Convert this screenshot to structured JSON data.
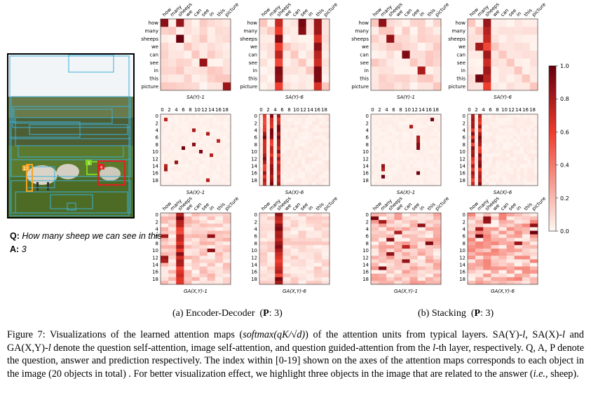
{
  "question_label": "Q",
  "question_text": "How many sheep we can see in this picture ?",
  "answer_label": "A",
  "answer_text": "3",
  "photo_box_labels": [
    "17",
    "3",
    "4"
  ],
  "subcaption_a": {
    "text": "(a) Encoder-Decoder",
    "pred_label": "P",
    "pred_value": "3"
  },
  "subcaption_b": {
    "text": "(b) Stacking",
    "pred_label": "P",
    "pred_value": "3"
  },
  "words": [
    "how",
    "many",
    "sheeps",
    "we",
    "can",
    "see",
    "in",
    "this",
    "picture"
  ],
  "object_ticks": [
    "0",
    "2",
    "4",
    "6",
    "8",
    "10",
    "12",
    "14",
    "16",
    "18"
  ],
  "colorbar_ticks": [
    "1.0",
    "0.8",
    "0.6",
    "0.4",
    "0.2",
    "0.0"
  ],
  "colors": {
    "low": "#fff5f0",
    "high": "#67000d"
  },
  "panels": [
    {
      "title": "SA(Y)-1",
      "kind": "word-word",
      "hot_rows": [],
      "hot_cols": [],
      "hot_cells": [
        [
          0,
          0
        ],
        [
          2,
          2
        ],
        [
          5,
          5
        ],
        [
          8,
          8
        ],
        [
          0,
          2
        ]
      ],
      "base": 0.1
    },
    {
      "title": "SA(Y)-6",
      "kind": "word-word",
      "hot_rows": [],
      "hot_cols": [
        2,
        7
      ],
      "hot_cells": [
        [
          0,
          5
        ],
        [
          1,
          5
        ],
        [
          6,
          7
        ]
      ],
      "base": 0.05
    },
    {
      "title": "SA(Y)-1",
      "kind": "word-word",
      "hot_rows": [],
      "hot_cols": [],
      "hot_cells": [
        [
          0,
          1
        ],
        [
          2,
          2
        ],
        [
          4,
          4
        ],
        [
          6,
          6
        ]
      ],
      "base": 0.1
    },
    {
      "title": "SA(Y)-6",
      "kind": "word-word",
      "hot_rows": [],
      "hot_cols": [
        2
      ],
      "hot_cells": [
        [
          3,
          1
        ],
        [
          4,
          2
        ],
        [
          7,
          1
        ]
      ],
      "base": 0.05
    },
    {
      "title": "SA(X)-1",
      "kind": "obj-obj",
      "hot_rows": [],
      "hot_cols": [],
      "hot_cells": [
        [
          1,
          1
        ],
        [
          4,
          9
        ],
        [
          5,
          13
        ],
        [
          7,
          16
        ],
        [
          9,
          6
        ],
        [
          10,
          11
        ],
        [
          14,
          1
        ],
        [
          15,
          1
        ],
        [
          13,
          4
        ],
        [
          11,
          14
        ],
        [
          8,
          9
        ],
        [
          18,
          13
        ]
      ],
      "base": 0.02
    },
    {
      "title": "SA(X)-6",
      "kind": "obj-obj",
      "hot_rows": [],
      "hot_cols": [
        1,
        3,
        5
      ],
      "hot_cells": [],
      "base": 0.03
    },
    {
      "title": "SA(X)-1",
      "kind": "obj-obj",
      "hot_rows": [],
      "hot_cols": [],
      "hot_cells": [
        [
          1,
          17
        ],
        [
          3,
          11
        ],
        [
          6,
          13
        ],
        [
          7,
          13
        ],
        [
          8,
          13
        ],
        [
          9,
          13
        ],
        [
          14,
          3
        ],
        [
          15,
          3
        ],
        [
          16,
          13
        ],
        [
          17,
          3
        ]
      ],
      "base": 0.02
    },
    {
      "title": "SA(X)-6",
      "kind": "obj-obj",
      "hot_rows": [],
      "hot_cols": [
        1,
        3
      ],
      "hot_cells": [],
      "base": 0.03
    },
    {
      "title": "GA(X,Y)-1",
      "kind": "obj-word",
      "hot_rows": [],
      "hot_cols": [
        2
      ],
      "hot_cells": [
        [
          6,
          0
        ],
        [
          12,
          0
        ],
        [
          13,
          0
        ],
        [
          6,
          6
        ],
        [
          10,
          6
        ]
      ],
      "base": 0.15
    },
    {
      "title": "GA(X,Y)-6",
      "kind": "obj-word",
      "hot_rows": [],
      "hot_cols": [
        2
      ],
      "hot_cells": [],
      "base": 0.1
    },
    {
      "title": "GA(X,Y)-1",
      "kind": "obj-word",
      "hot_rows": [],
      "hot_cols": [],
      "hot_cells": [
        [
          1,
          0
        ],
        [
          2,
          1
        ],
        [
          5,
          3
        ],
        [
          7,
          2
        ],
        [
          9,
          4
        ],
        [
          11,
          2
        ],
        [
          13,
          4
        ],
        [
          15,
          1
        ],
        [
          3,
          6
        ],
        [
          8,
          7
        ]
      ],
      "base": 0.2
    },
    {
      "title": "GA(X,Y)-6",
      "kind": "obj-word",
      "hot_rows": [],
      "hot_cols": [],
      "hot_cells": [
        [
          1,
          2
        ],
        [
          2,
          2
        ],
        [
          4,
          1
        ],
        [
          6,
          1
        ],
        [
          3,
          8
        ],
        [
          5,
          8
        ],
        [
          8,
          6
        ]
      ],
      "base": 0.25
    }
  ],
  "caption": {
    "part1": "Figure 7: Visualizations of the learned attention maps (",
    "math": "softmax(qK/√d)",
    "part2": ") of the attention units from typical layers. SA(Y)-",
    "l1": "l",
    "part3": ", SA(X)-",
    "l2": "l",
    "part4": " and GA(X,Y)-",
    "l3": "l",
    "part5": " denote the question self-attention, image self-attention, and question guided-attention from the ",
    "l4": "l",
    "part6": "-th layer, respectively. Q, A, P denote the question, answer and prediction respectively. The index within [0-19] shown on the axes of the attention maps corresponds to each object in the image (20 objects in total) . For better visualization effect, we highlight three objects in the image that are related to the answer (",
    "ie": "i.e.",
    "part7": ", sheep)."
  }
}
